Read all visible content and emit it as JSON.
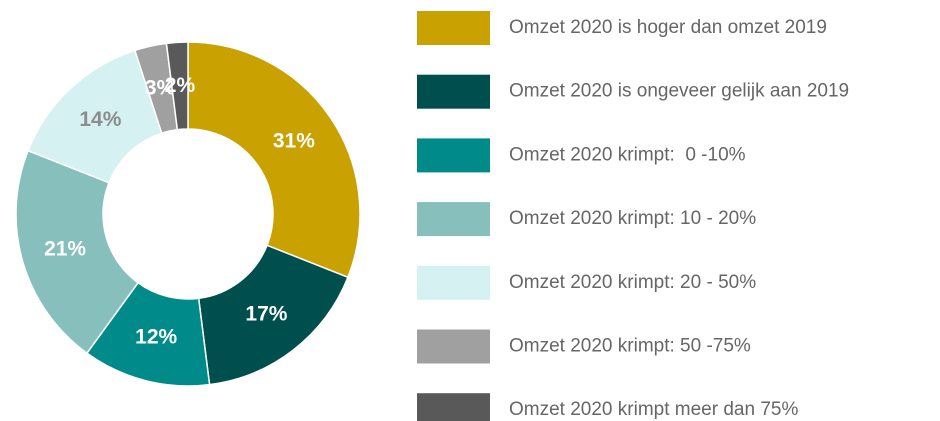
{
  "chart_data": {
    "type": "donut",
    "categories": [
      "Omzet 2020 is hoger dan omzet 2019",
      "Omzet 2020 is ongeveer gelijk aan 2019",
      "Omzet 2020 krimpt:  0 -10%",
      "Omzet 2020 krimpt: 10 - 20%",
      "Omzet 2020 krimpt: 20 - 50%",
      "Omzet 2020 krimpt: 50 -75%",
      "Omzet 2020 krimpt meer dan 75%"
    ],
    "values": [
      31,
      17,
      12,
      21,
      14,
      3,
      2
    ],
    "value_labels": [
      "31%",
      "17%",
      "12%",
      "21%",
      "14%",
      "3%",
      "2%"
    ],
    "colors": [
      "#c9a100",
      "#004f4f",
      "#008a89",
      "#86bfbc",
      "#d5f1f1",
      "#a0a0a0",
      "#595959"
    ],
    "legend": "right"
  }
}
